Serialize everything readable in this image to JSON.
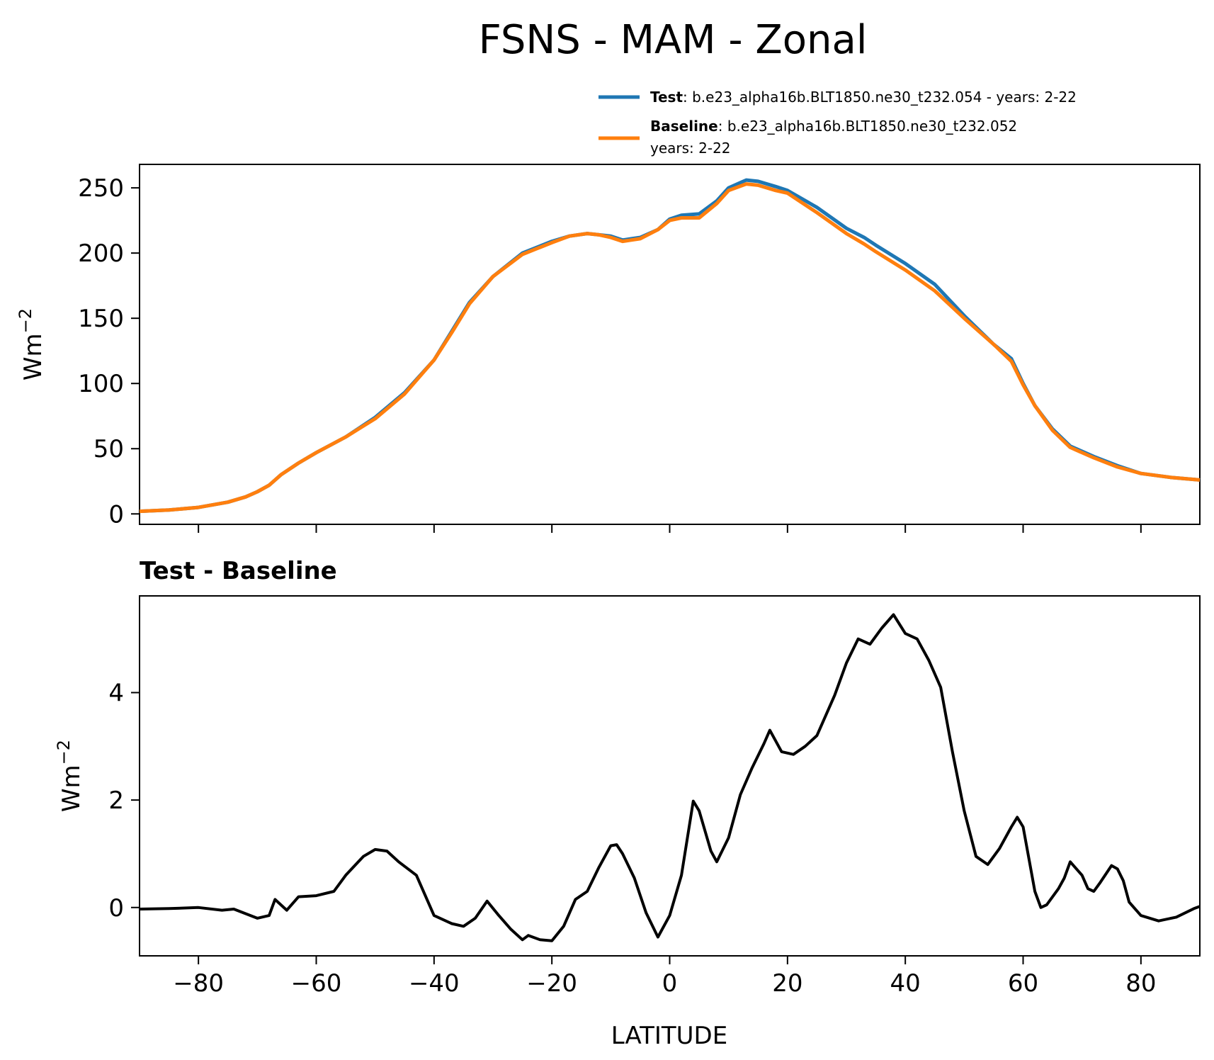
{
  "chart_data": [
    {
      "type": "line",
      "title": "FSNS - MAM - Zonal",
      "xlabel": "",
      "ylabel": "Wm^-2",
      "xlim": [
        -90,
        90
      ],
      "ylim": [
        -8,
        268
      ],
      "yticks": [
        0,
        50,
        100,
        150,
        200,
        250
      ],
      "legend": {
        "position": "top-right",
        "entries": [
          {
            "bold": "Test",
            "text": ": b.e23_alpha16b.BLT1850.ne30_t232.054 - years: 2-22",
            "text2": "",
            "color": "#1f77b4"
          },
          {
            "bold": "Baseline",
            "text": ": b.e23_alpha16b.BLT1850.ne30_t232.052",
            "text2": "years: 2-22",
            "color": "#ff7f0e"
          }
        ]
      },
      "x": [
        -90,
        -85,
        -80,
        -75,
        -72,
        -70,
        -68,
        -66,
        -63,
        -60,
        -55,
        -50,
        -45,
        -40,
        -37,
        -34,
        -30,
        -25,
        -20,
        -17,
        -14,
        -12,
        -10,
        -8,
        -5,
        -2,
        0,
        2,
        5,
        8,
        10,
        13,
        15,
        18,
        20,
        25,
        30,
        33,
        35,
        40,
        45,
        50,
        55,
        58,
        60,
        62,
        65,
        68,
        72,
        76,
        80,
        85,
        90
      ],
      "series": [
        {
          "name": "Test",
          "color": "#1f77b4",
          "values": [
            2,
            3,
            5,
            9,
            13,
            17,
            22,
            30,
            39,
            47,
            59,
            74,
            93,
            118,
            140,
            162,
            182,
            200,
            209,
            213,
            215,
            214,
            213,
            210,
            212,
            218,
            226,
            229,
            230,
            240,
            250,
            256,
            255,
            251,
            248,
            235,
            219,
            212,
            206,
            192,
            176,
            152,
            130,
            119,
            100,
            83,
            65,
            52,
            44,
            37,
            31,
            28,
            26
          ]
        },
        {
          "name": "Baseline",
          "color": "#ff7f0e",
          "values": [
            2,
            3,
            5,
            9,
            13,
            17,
            22,
            30,
            39,
            47,
            59,
            73,
            92,
            118,
            139,
            161,
            182,
            199,
            208,
            213,
            215,
            214,
            212,
            209,
            211,
            218,
            225,
            227,
            227,
            238,
            248,
            253,
            252,
            248,
            246,
            231,
            215,
            207,
            201,
            187,
            171,
            150,
            130,
            117,
            99,
            83,
            64,
            51,
            43,
            36,
            31,
            28,
            26
          ]
        }
      ]
    },
    {
      "type": "line",
      "title": "Test - Baseline",
      "xlabel": "LATITUDE",
      "ylabel": "Wm^-2",
      "xlim": [
        -90,
        90
      ],
      "ylim": [
        -0.9,
        5.8
      ],
      "xticks": [
        -80,
        -60,
        -40,
        -20,
        0,
        20,
        40,
        60,
        80
      ],
      "yticks": [
        0,
        2,
        4
      ],
      "series": [
        {
          "name": "Test - Baseline",
          "color": "#000000",
          "x": [
            -90,
            -85,
            -80,
            -76,
            -74,
            -70,
            -68,
            -67,
            -65,
            -63,
            -60,
            -57,
            -55,
            -52,
            -50,
            -48,
            -46,
            -43,
            -40,
            -37,
            -35,
            -33,
            -31,
            -29,
            -27,
            -25,
            -24,
            -22,
            -20,
            -18,
            -16,
            -14,
            -12,
            -10,
            -9,
            -8,
            -6,
            -4,
            -2,
            0,
            2,
            4,
            5,
            7,
            8,
            10,
            12,
            14,
            16,
            17,
            19,
            21,
            23,
            25,
            28,
            30,
            32,
            34,
            36,
            38,
            40,
            42,
            44,
            46,
            47,
            48,
            50,
            52,
            54,
            56,
            58,
            59,
            60,
            61,
            62,
            63,
            64,
            66,
            67,
            68,
            70,
            71,
            72,
            73,
            75,
            76,
            77,
            78,
            80,
            83,
            86,
            89,
            90
          ],
          "values": [
            -0.03,
            -0.02,
            0.0,
            -0.05,
            -0.03,
            -0.2,
            -0.15,
            0.15,
            -0.05,
            0.2,
            0.22,
            0.3,
            0.6,
            0.95,
            1.08,
            1.05,
            0.85,
            0.6,
            -0.15,
            -0.3,
            -0.35,
            -0.2,
            0.12,
            -0.15,
            -0.4,
            -0.6,
            -0.52,
            -0.6,
            -0.62,
            -0.35,
            0.15,
            0.3,
            0.75,
            1.15,
            1.17,
            1.0,
            0.55,
            -0.1,
            -0.55,
            -0.15,
            0.6,
            1.98,
            1.8,
            1.05,
            0.85,
            1.3,
            2.1,
            2.6,
            3.05,
            3.3,
            2.9,
            2.85,
            3.0,
            3.2,
            3.95,
            4.55,
            5.0,
            4.9,
            5.2,
            5.45,
            5.1,
            5.0,
            4.6,
            4.1,
            3.5,
            2.9,
            1.8,
            0.95,
            0.8,
            1.1,
            1.5,
            1.68,
            1.5,
            0.9,
            0.3,
            0.0,
            0.05,
            0.35,
            0.55,
            0.85,
            0.6,
            0.35,
            0.3,
            0.45,
            0.78,
            0.72,
            0.5,
            0.1,
            -0.15,
            -0.25,
            -0.18,
            -0.02,
            0.02
          ]
        }
      ]
    }
  ]
}
